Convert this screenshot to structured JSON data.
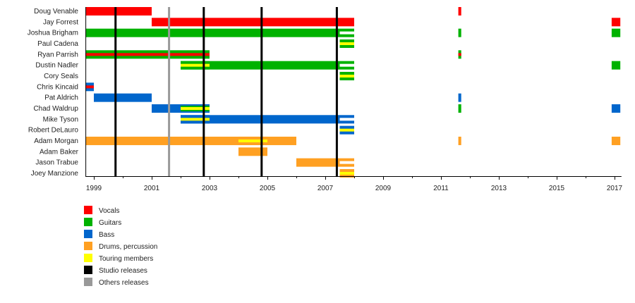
{
  "chart_data": {
    "type": "timeline",
    "title": "",
    "xlim": [
      1998.71,
      2017.24
    ],
    "x_ticks": [
      "1999",
      "2001",
      "2003",
      "2005",
      "2007",
      "2009",
      "2011",
      "2013",
      "2015",
      "2017"
    ],
    "colors": {
      "vocals": "#ff0000",
      "guitars": "#00b200",
      "bass": "#0066cc",
      "drums": "#ffa022",
      "touring": "#ffff00",
      "studio": "#000000",
      "others": "#999999"
    },
    "members": [
      {
        "name": "Doug Venable",
        "bars": [
          {
            "s": 1998.71,
            "e": 2001.0,
            "c": "vocals"
          },
          {
            "s": 2011.6,
            "e": 2011.7,
            "c": "vocals"
          }
        ]
      },
      {
        "name": "Jay Forrest",
        "bars": [
          {
            "s": 2001.0,
            "e": 2008.0,
            "c": "vocals"
          },
          {
            "s": 2016.9,
            "e": 2017.2,
            "c": "vocals"
          }
        ]
      },
      {
        "name": "Joshua Brigham",
        "bars": [
          {
            "s": 1998.71,
            "e": 2007.5,
            "c": "guitars"
          },
          {
            "s": 2007.5,
            "e": 2008.0,
            "c": "guitars",
            "hollow": true
          },
          {
            "s": 2011.6,
            "e": 2011.7,
            "c": "guitars"
          },
          {
            "s": 2016.9,
            "e": 2017.2,
            "c": "guitars"
          }
        ]
      },
      {
        "name": "Paul Cadena",
        "bars": [
          {
            "s": 2007.5,
            "e": 2008.0,
            "c": "guitars",
            "stripe": "touring"
          }
        ]
      },
      {
        "name": "Ryan Parrish",
        "bars": [
          {
            "s": 1998.71,
            "e": 2003.0,
            "c": "guitars",
            "stripe": "vocals"
          },
          {
            "s": 2011.6,
            "e": 2011.7,
            "c": "guitars",
            "stripe": "vocals"
          }
        ]
      },
      {
        "name": "Dustin Nadler",
        "bars": [
          {
            "s": 2002.0,
            "e": 2007.5,
            "c": "guitars"
          },
          {
            "s": 2002.0,
            "e": 2003.0,
            "c": "guitars",
            "stripe": "touring"
          },
          {
            "s": 2007.5,
            "e": 2008.0,
            "c": "guitars",
            "hollow": true
          },
          {
            "s": 2016.9,
            "e": 2017.2,
            "c": "guitars"
          }
        ]
      },
      {
        "name": "Cory Seals",
        "bars": [
          {
            "s": 2007.5,
            "e": 2008.0,
            "c": "guitars",
            "stripe": "touring"
          }
        ]
      },
      {
        "name": "Chris Kincaid",
        "bars": [
          {
            "s": 1998.71,
            "e": 1999.0,
            "c": "bass",
            "stripe": "vocals"
          }
        ]
      },
      {
        "name": "Pat Aldrich",
        "bars": [
          {
            "s": 1999.0,
            "e": 2001.0,
            "c": "bass"
          },
          {
            "s": 2011.6,
            "e": 2011.7,
            "c": "bass"
          }
        ]
      },
      {
        "name": "Chad Waldrup",
        "bars": [
          {
            "s": 2001.0,
            "e": 2003.0,
            "c": "bass"
          },
          {
            "s": 2002.0,
            "e": 2003.0,
            "c": "bass",
            "stripe2": "guitars",
            "stripe": "touring"
          },
          {
            "s": 2011.6,
            "e": 2011.7,
            "c": "guitars"
          },
          {
            "s": 2016.9,
            "e": 2017.2,
            "c": "bass"
          }
        ]
      },
      {
        "name": "Mike Tyson",
        "bars": [
          {
            "s": 2002.0,
            "e": 2007.5,
            "c": "bass"
          },
          {
            "s": 2002.0,
            "e": 2003.0,
            "c": "bass",
            "stripe": "touring"
          },
          {
            "s": 2007.5,
            "e": 2008.0,
            "c": "bass",
            "hollow": true
          }
        ]
      },
      {
        "name": "Robert DeLauro",
        "bars": [
          {
            "s": 2007.5,
            "e": 2008.0,
            "c": "bass",
            "stripe": "touring"
          }
        ]
      },
      {
        "name": "Adam Morgan",
        "bars": [
          {
            "s": 1998.71,
            "e": 2006.0,
            "c": "drums"
          },
          {
            "s": 2004.0,
            "e": 2005.0,
            "c": "drums",
            "stripe": "touring"
          },
          {
            "s": 2011.6,
            "e": 2011.7,
            "c": "drums"
          },
          {
            "s": 2016.9,
            "e": 2017.2,
            "c": "drums"
          }
        ]
      },
      {
        "name": "Adam Baker",
        "bars": [
          {
            "s": 2004.0,
            "e": 2005.0,
            "c": "drums"
          }
        ]
      },
      {
        "name": "Jason Trabue",
        "bars": [
          {
            "s": 2006.0,
            "e": 2007.5,
            "c": "drums"
          },
          {
            "s": 2007.5,
            "e": 2008.0,
            "c": "drums",
            "hollow": true
          }
        ]
      },
      {
        "name": "Joey Manzione",
        "bars": [
          {
            "s": 2007.5,
            "e": 2008.0,
            "c": "drums",
            "stripe": "touring"
          }
        ]
      }
    ],
    "releases": [
      {
        "x": 1999.75,
        "type": "studio"
      },
      {
        "x": 2001.6,
        "type": "others"
      },
      {
        "x": 2002.8,
        "type": "studio"
      },
      {
        "x": 2004.8,
        "type": "studio"
      },
      {
        "x": 2007.4,
        "type": "studio"
      }
    ],
    "legend": [
      {
        "label": "Vocals",
        "c": "vocals"
      },
      {
        "label": "Guitars",
        "c": "guitars"
      },
      {
        "label": "Bass",
        "c": "bass"
      },
      {
        "label": "Drums, percussion",
        "c": "drums"
      },
      {
        "label": "Touring members",
        "c": "touring"
      },
      {
        "label": "Studio releases",
        "c": "studio"
      },
      {
        "label": "Others releases",
        "c": "others"
      }
    ],
    "legend_position": "bottom-left"
  }
}
